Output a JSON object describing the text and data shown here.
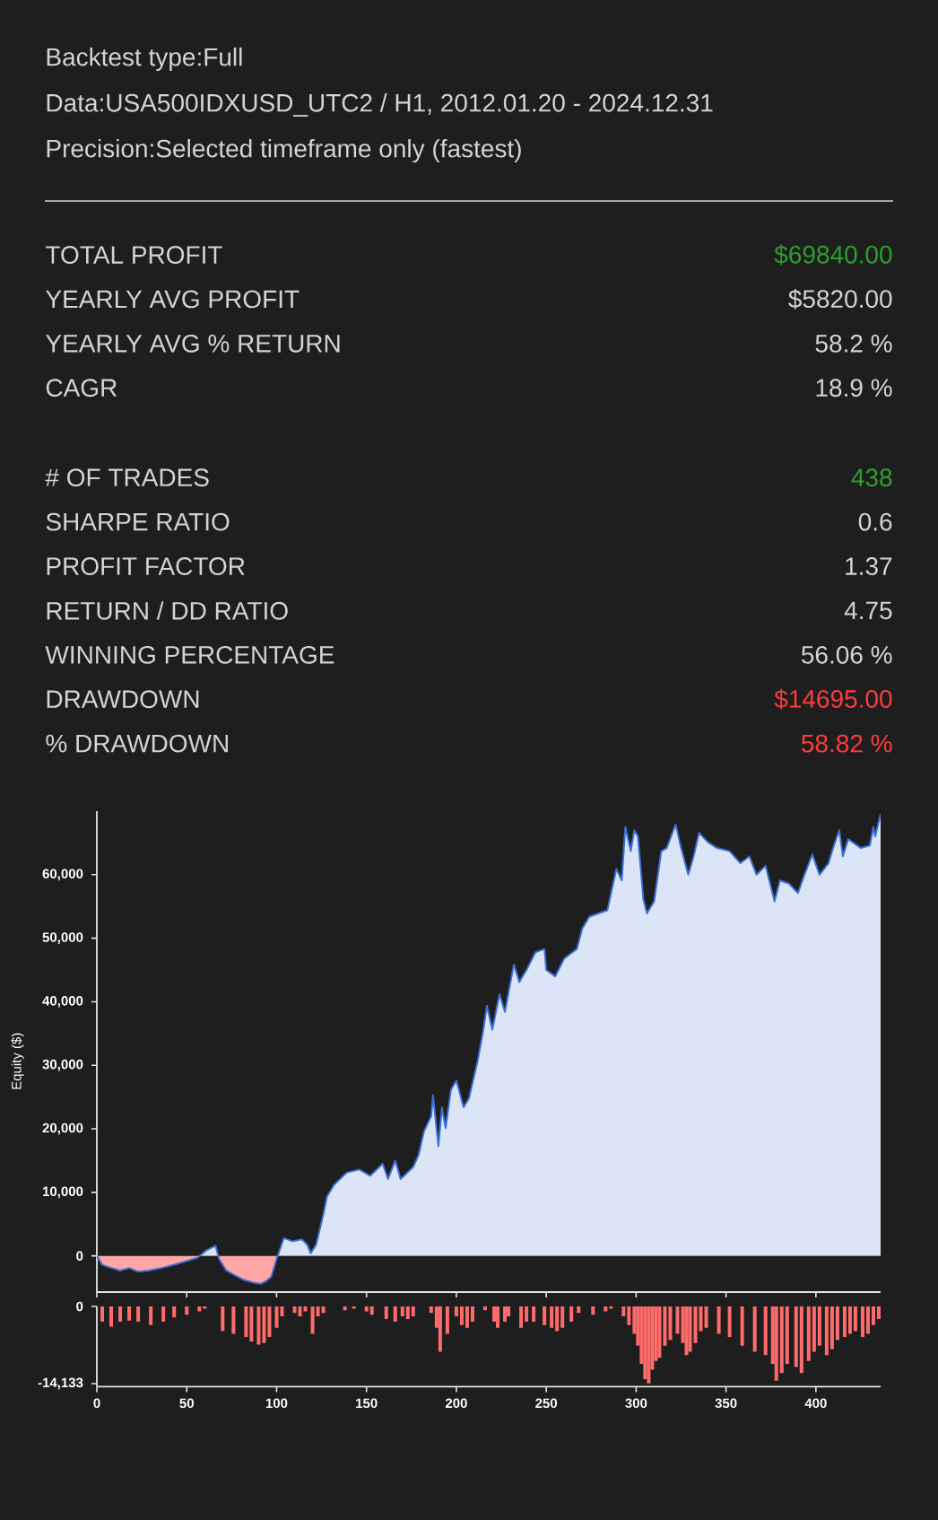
{
  "chart_data": [
    {
      "type": "other",
      "title": "Backtest type:Full",
      "subtitle": "Data:USA500IDXUSD_UTC2 / H1, 2012.01.20 - 2024.12.31",
      "annotations": [
        "Precision:Selected timeframe only (fastest)"
      ],
      "categories": [
        "TOTAL PROFIT",
        "YEARLY AVG PROFIT",
        "YEARLY AVG % RETURN",
        "CAGR",
        "# OF TRADES",
        "SHARPE RATIO",
        "PROFIT FACTOR",
        "RETURN / DD RATIO",
        "WINNING PERCENTAGE",
        "DRAWDOWN",
        "% DRAWDOWN"
      ],
      "value_labels": [
        "$69840.00",
        "$5820.00",
        "58.2 %",
        "18.9 %",
        "438",
        "0.6",
        "1.37",
        "4.75",
        "56.06 %",
        "$14695.00",
        "58.82 %"
      ],
      "colors": [
        "#2ca02c",
        "#d4d4d4",
        "#d4d4d4",
        "#d4d4d4",
        "#2ca02c",
        "#d4d4d4",
        "#d4d4d4",
        "#d4d4d4",
        "#d4d4d4",
        "#ff3b3b",
        "#ff3b3b"
      ]
    },
    {
      "type": "area",
      "ylabel": "Equity ($)",
      "color": "#3b6fd8",
      "tick_labels": "y",
      "xlim": [
        0,
        436
      ],
      "ylim": [
        -5700,
        70000
      ],
      "xticks": [
        0,
        50,
        100,
        150,
        200,
        250,
        300,
        350,
        400
      ],
      "yticks": [
        0,
        {
          "value": 10000,
          "label": "10,000"
        },
        {
          "value": 20000,
          "label": "20,000"
        },
        {
          "value": 30000,
          "label": "30,000"
        },
        {
          "value": 40000,
          "label": "40,000"
        },
        {
          "value": 50000,
          "label": "50,000"
        },
        {
          "value": 60000,
          "label": "60,000"
        }
      ],
      "x": [
        0,
        3,
        8,
        13,
        18,
        23,
        29,
        36,
        43,
        49,
        56,
        61,
        66,
        68,
        72,
        77,
        82,
        87,
        91,
        94,
        97,
        100,
        104,
        109,
        114,
        117,
        119,
        122,
        126,
        128,
        132,
        139,
        146,
        152,
        159,
        162,
        166,
        169,
        176,
        179,
        182,
        186,
        187,
        190,
        192,
        194,
        197,
        200,
        204,
        207,
        212,
        215,
        217,
        220,
        224,
        227,
        232,
        235,
        239,
        244,
        249,
        250,
        255,
        260,
        267,
        270,
        274,
        279,
        284,
        289,
        292,
        294,
        297,
        299,
        301,
        304,
        306,
        310,
        314,
        317,
        322,
        325,
        329,
        332,
        335,
        340,
        345,
        352,
        358,
        363,
        367,
        372,
        377,
        380,
        385,
        390,
        393,
        398,
        402,
        407,
        410,
        413,
        415,
        418,
        425,
        430,
        432,
        433,
        436
      ],
      "values": [
        0,
        -1400,
        -1900,
        -2300,
        -1900,
        -2500,
        -2300,
        -1900,
        -1400,
        -900,
        -300,
        900,
        1600,
        -500,
        -2300,
        -3100,
        -3800,
        -4200,
        -4400,
        -4000,
        -3300,
        -500,
        2800,
        2300,
        2600,
        1800,
        400,
        1800,
        6500,
        9300,
        11200,
        13100,
        13600,
        12600,
        14500,
        12100,
        15000,
        12100,
        14000,
        15900,
        19600,
        22000,
        25300,
        17300,
        23400,
        20100,
        26200,
        27600,
        23400,
        24800,
        30900,
        35600,
        39400,
        35600,
        41200,
        38400,
        45900,
        43100,
        45000,
        47800,
        48300,
        45000,
        44000,
        46800,
        48300,
        51500,
        53400,
        53900,
        54400,
        60900,
        59100,
        67500,
        63700,
        67000,
        66000,
        56200,
        53900,
        55800,
        63700,
        64200,
        67900,
        64200,
        60000,
        62900,
        66600,
        65100,
        64200,
        63700,
        61800,
        62900,
        60000,
        61400,
        55800,
        59100,
        58600,
        57100,
        59500,
        63200,
        60000,
        61800,
        64600,
        67000,
        62900,
        65600,
        64200,
        64600,
        67500,
        66000,
        69600
      ]
    },
    {
      "type": "bar",
      "color": "#ff6b6b",
      "xlim": [
        0,
        436
      ],
      "ylim": [
        -14695,
        0
      ],
      "xticks": [
        0,
        50,
        100,
        150,
        200,
        250,
        300,
        350,
        400
      ],
      "yticks": [
        0,
        {
          "value": -14133,
          "label": "-14,133"
        }
      ],
      "x": [
        3,
        8,
        13,
        18,
        23,
        30,
        37,
        43,
        50,
        57,
        60,
        70,
        76,
        83,
        86,
        90,
        93,
        96,
        100,
        103,
        110,
        113,
        116,
        120,
        123,
        126,
        138,
        143,
        150,
        153,
        161,
        166,
        170,
        173,
        176,
        186,
        189,
        191,
        195,
        200,
        203,
        206,
        209,
        216,
        221,
        223,
        227,
        229,
        236,
        239,
        243,
        249,
        253,
        256,
        259,
        264,
        268,
        276,
        283,
        286,
        293,
        296,
        299,
        301,
        303,
        305,
        307,
        309,
        311,
        313,
        316,
        319,
        323,
        326,
        328,
        330,
        333,
        336,
        339,
        346,
        352,
        359,
        366,
        372,
        376,
        378,
        381,
        384,
        389,
        392,
        396,
        399,
        402,
        406,
        409,
        412,
        416,
        419,
        422,
        426,
        429,
        432,
        435
      ],
      "values": [
        -2800,
        -3700,
        -2800,
        -2600,
        -2800,
        -3400,
        -2800,
        -2000,
        -1500,
        -900,
        -400,
        -4500,
        -5000,
        -5600,
        -6400,
        -7000,
        -6700,
        -5600,
        -3900,
        -1800,
        -1200,
        -1800,
        -900,
        -5000,
        -1800,
        -1200,
        -700,
        -400,
        -900,
        -1500,
        -2300,
        -2800,
        -1800,
        -2300,
        -1800,
        -1200,
        -3900,
        -8300,
        -5000,
        -1800,
        -3400,
        -3900,
        -2800,
        -700,
        -2800,
        -3900,
        -2800,
        -1800,
        -3900,
        -2800,
        -2800,
        -3400,
        -3900,
        -4500,
        -3900,
        -2800,
        -1200,
        -1500,
        -900,
        -400,
        -1800,
        -3400,
        -5000,
        -7200,
        -10500,
        -13300,
        -14100,
        -11600,
        -10000,
        -9400,
        -7200,
        -6100,
        -5000,
        -6700,
        -8900,
        -8300,
        -6700,
        -4500,
        -3900,
        -5000,
        -5600,
        -7200,
        -8300,
        -8900,
        -10500,
        -13600,
        -12200,
        -10500,
        -11100,
        -12200,
        -10000,
        -8300,
        -7200,
        -8900,
        -7800,
        -6100,
        -5600,
        -5000,
        -4500,
        -5600,
        -5000,
        -3400,
        -2300
      ]
    }
  ]
}
